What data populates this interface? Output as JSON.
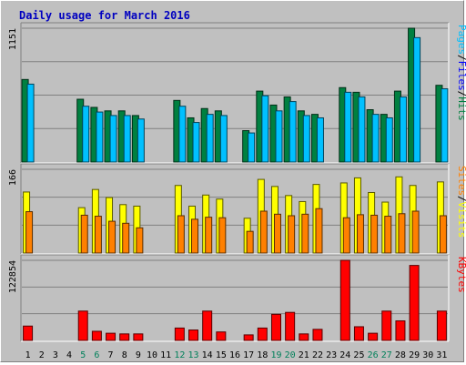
{
  "chart_data": {
    "type": "bar",
    "title": "Daily usage for March 2016",
    "days": [
      "1",
      "2",
      "3",
      "4",
      "5",
      "6",
      "7",
      "8",
      "9",
      "10",
      "11",
      "12",
      "13",
      "14",
      "15",
      "16",
      "17",
      "18",
      "19",
      "20",
      "21",
      "22",
      "23",
      "24",
      "25",
      "26",
      "27",
      "28",
      "29",
      "30",
      "31"
    ],
    "weekend_days": [
      "5",
      "6",
      "12",
      "13",
      "19",
      "20",
      "26",
      "27"
    ],
    "panels": [
      {
        "id": "hits-files-pages",
        "ymax": 1151,
        "series": [
          {
            "name": "Hits",
            "color": "#008040",
            "values": [
              710,
              0,
              0,
              0,
              540,
              470,
              440,
              440,
              400,
              0,
              0,
              530,
              380,
              460,
              440,
              0,
              270,
              610,
              490,
              560,
              440,
              410,
              0,
              640,
              600,
              450,
              410,
              610,
              1151,
              0,
              660
            ]
          },
          {
            "name": "Files",
            "color": "#0000ff",
            "values": [
              0,
              0,
              0,
              0,
              0,
              0,
              0,
              0,
              0,
              0,
              0,
              0,
              0,
              0,
              0,
              0,
              0,
              0,
              0,
              0,
              0,
              0,
              0,
              0,
              0,
              0,
              0,
              0,
              0,
              0,
              0
            ]
          },
          {
            "name": "Pages",
            "color": "#00c0ff",
            "values": [
              670,
              0,
              0,
              0,
              480,
              430,
              400,
              400,
              370,
              0,
              0,
              480,
              340,
              410,
              400,
              0,
              250,
              570,
              440,
              520,
              400,
              380,
              0,
              600,
              560,
              410,
              380,
              560,
              1070,
              0,
              630
            ]
          }
        ]
      },
      {
        "id": "visits-sites",
        "ymax": 166,
        "series": [
          {
            "name": "Visits",
            "color": "#ffff00",
            "values": [
              121,
              0,
              0,
              0,
              90,
              126,
              110,
              96,
              93,
              0,
              0,
              134,
              93,
              115,
              107,
              0,
              69,
              146,
              132,
              114,
              102,
              136,
              0,
              139,
              149,
              120,
              101,
              151,
              134,
              0,
              141
            ]
          },
          {
            "name": "Sites",
            "color": "#ff8000",
            "values": [
              82,
              0,
              0,
              0,
              75,
              73,
              63,
              59,
              50,
              0,
              0,
              74,
              67,
              71,
              70,
              0,
              43,
              83,
              77,
              74,
              77,
              88,
              0,
              70,
              76,
              75,
              73,
              78,
              83,
              0,
              74
            ]
          }
        ]
      },
      {
        "id": "kbytes",
        "ymax": 122854,
        "series": [
          {
            "name": "KBytes",
            "color": "#ff0000",
            "values": [
              22000,
              0,
              0,
              0,
              45000,
              14000,
              11000,
              10000,
              10000,
              0,
              0,
              19000,
              16000,
              45000,
              13000,
              0,
              8500,
              19000,
              40000,
              43000,
              10000,
              17000,
              0,
              122854,
              21000,
              11000,
              45000,
              30000,
              115000,
              0,
              45000
            ]
          }
        ]
      }
    ]
  }
}
